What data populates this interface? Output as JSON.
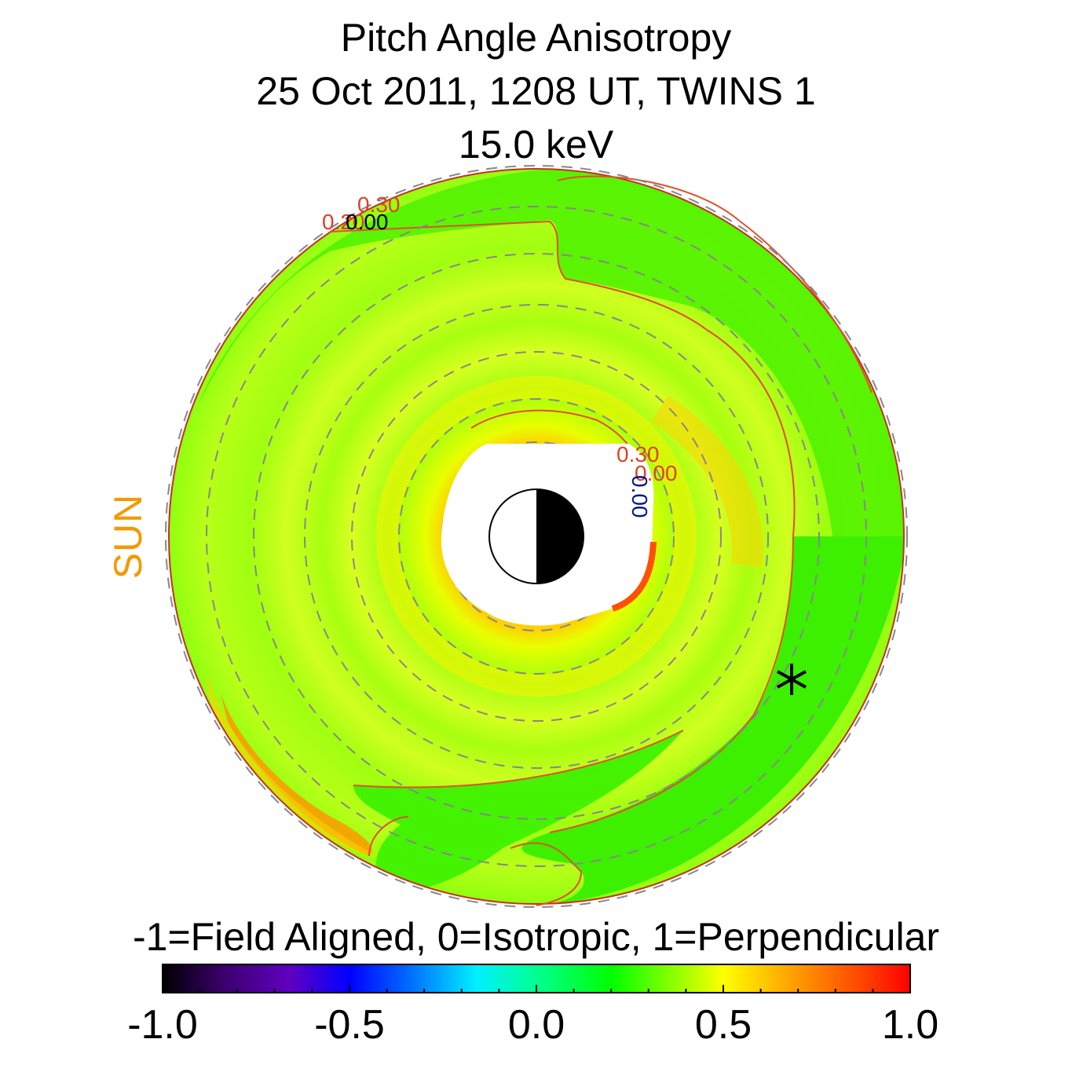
{
  "title": {
    "line1": "Pitch Angle Anisotropy",
    "line2": "25 Oct 2011, 1208 UT,  TWINS 1",
    "line3": "15.0 keV"
  },
  "sun_label": "SUN",
  "colorbar": {
    "caption": "-1=Field Aligned, 0=Isotropic, 1=Perpendicular",
    "range": [
      -1.0,
      1.0
    ],
    "tick_labels": [
      "-1.0",
      "-0.5",
      "0.0",
      "0.5",
      "1.0"
    ],
    "tick_values": [
      -1.0,
      -0.5,
      0.0,
      0.5,
      1.0
    ],
    "colors": [
      "#000000",
      "#3b0070",
      "#5a00b0",
      "#0000ff",
      "#0070ff",
      "#00ffff",
      "#00ff80",
      "#00ff00",
      "#a0ff00",
      "#ffff00",
      "#ff9900",
      "#ff5000",
      "#ff0000"
    ]
  },
  "chart_data": {
    "type": "heatmap",
    "title": "Pitch Angle Anisotropy 25 Oct 2011, 1208 UT,  TWINS 1 15.0 keV",
    "projection": "polar equatorial map, Sun to the left",
    "value_range": [
      -1.0,
      1.0
    ],
    "contour_labels": [
      "0.30",
      "0.20",
      "0.00",
      "0.30",
      "0.00",
      "0.00"
    ],
    "marker": "*",
    "colors": {
      "background_field": "#3cf000",
      "ring_field": "#a0ff10",
      "enhancement": "#ffd200",
      "peak": "#ff6000",
      "contour": "#e0402a",
      "contour_neg": "#001a80",
      "grid": "#888888",
      "sun": "#f29a00"
    }
  }
}
